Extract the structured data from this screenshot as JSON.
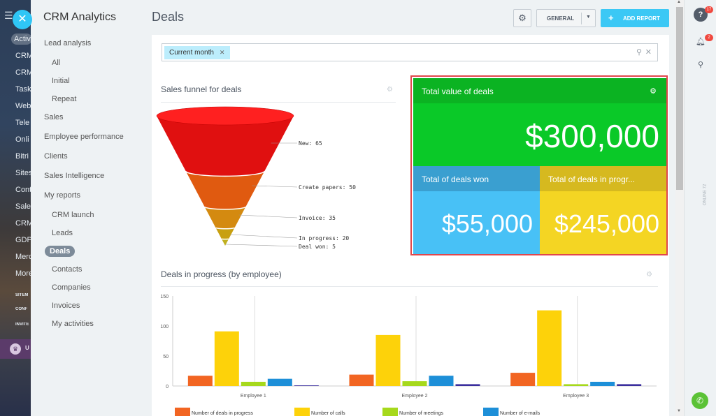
{
  "background_menu": {
    "items": [
      "Activ",
      "CRM",
      "CRM",
      "Task",
      "Web",
      "Tele",
      "Onli",
      "Bitri",
      "Sites",
      "Cont",
      "Sales",
      "CRM",
      "GDP",
      "Merc",
      "More",
      "SITEM",
      "CONF",
      "INVITE"
    ],
    "upgrade_label": "U"
  },
  "nav": {
    "title": "CRM Analytics",
    "items": [
      {
        "label": "Lead analysis"
      },
      {
        "label": "All"
      },
      {
        "label": "Initial"
      },
      {
        "label": "Repeat"
      },
      {
        "label": "Sales"
      },
      {
        "label": "Employee performance"
      },
      {
        "label": "Clients"
      },
      {
        "label": "Sales Intelligence"
      },
      {
        "label": "My reports"
      },
      {
        "label": "CRM launch"
      },
      {
        "label": "Leads"
      },
      {
        "label": "Deals"
      },
      {
        "label": "Contacts"
      },
      {
        "label": "Companies"
      },
      {
        "label": "Invoices"
      },
      {
        "label": "My activities"
      }
    ]
  },
  "header": {
    "title": "Deals",
    "general_label": "GENERAL",
    "add_report_label": "ADD REPORT"
  },
  "filter": {
    "chip_label": "Current month"
  },
  "funnel": {
    "title": "Sales funnel for deals",
    "stages": [
      {
        "label": "New: 65",
        "value": 65,
        "color": "#e01010"
      },
      {
        "label": "Create papers: 50",
        "value": 50,
        "color": "#e05a10"
      },
      {
        "label": "Invoice: 35",
        "value": 35,
        "color": "#d48a10"
      },
      {
        "label": "In progress: 20",
        "value": 20,
        "color": "#c8a010"
      },
      {
        "label": "Deal won: 5",
        "value": 5,
        "color": "#c0b020"
      }
    ]
  },
  "tiles": {
    "total": {
      "title": "Total value of deals",
      "value": "$300,000"
    },
    "won": {
      "title": "Total of deals won",
      "value": "$55,000"
    },
    "progress": {
      "title": "Total of deals in progr...",
      "value": "$245,000"
    }
  },
  "chart_data": {
    "type": "bar",
    "title": "Deals in progress (by employee)",
    "categories": [
      "Employee 1",
      "Employee 2",
      "Employee 3"
    ],
    "ylim": [
      0,
      150
    ],
    "yticks": [
      0,
      50,
      100,
      150
    ],
    "series": [
      {
        "name": "Number of deals in progress",
        "color": "#f26522",
        "values": [
          17,
          19,
          22
        ]
      },
      {
        "name": "Number of calls",
        "color": "#fdd20a",
        "values": [
          91,
          85,
          126
        ]
      },
      {
        "name": "Number of meetings",
        "color": "#a6d91c",
        "values": [
          7,
          8,
          3
        ]
      },
      {
        "name": "Number of e-mails",
        "color": "#1d8fd8",
        "values": [
          12,
          17,
          7
        ]
      },
      {
        "name": "",
        "color": "#3b2f9e",
        "values": [
          1,
          3,
          3
        ]
      }
    ]
  },
  "rightbar": {
    "help_badge": "17",
    "bell_badge": "2",
    "vertical_text": "ONLINE 72"
  }
}
